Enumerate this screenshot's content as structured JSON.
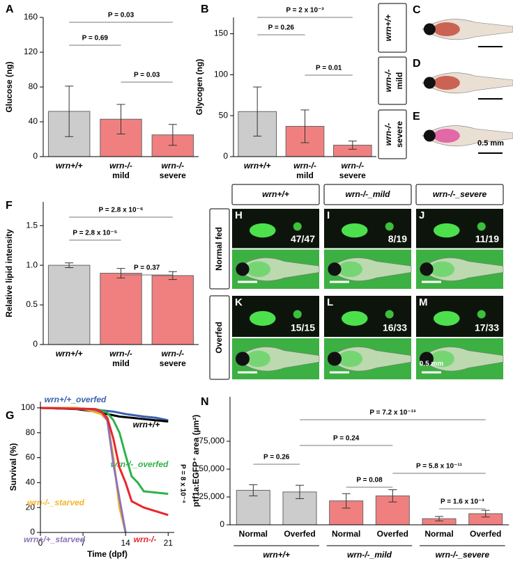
{
  "chart_data": [
    {
      "type": "bar",
      "panel": "A",
      "ylabel": "Glucose (ng)",
      "categories": [
        [
          "wrn+/+"
        ],
        [
          "wrn-/-",
          "mild"
        ],
        [
          "wrn-/-",
          "severe"
        ]
      ],
      "values": [
        52,
        43,
        25
      ],
      "errors": [
        29,
        17,
        12
      ],
      "colors": [
        "#cccccc",
        "#f08080",
        "#f08080"
      ],
      "ylim": [
        0,
        160
      ],
      "yticks": [
        0,
        40,
        80,
        120,
        160
      ],
      "annotations": [
        "P = 0.03",
        "P = 0.69",
        "P = 0.03"
      ]
    },
    {
      "type": "bar",
      "panel": "B",
      "ylabel": "Glycogen (ng)",
      "categories": [
        [
          "wrn+/+"
        ],
        [
          "wrn-/-",
          "mild"
        ],
        [
          "wrn-/-",
          "severe"
        ]
      ],
      "values": [
        55,
        37,
        14
      ],
      "errors": [
        30,
        20,
        5
      ],
      "colors": [
        "#cccccc",
        "#f08080",
        "#f08080"
      ],
      "ylim": [
        0,
        170
      ],
      "yticks": [
        0,
        50,
        100,
        150
      ],
      "annotations": [
        "P = 2 x 10⁻³",
        "P = 0.26",
        "P = 0.01"
      ]
    },
    {
      "type": "bar",
      "panel": "F",
      "ylabel": "Relative lipid intensity",
      "categories": [
        [
          "wrn+/+"
        ],
        [
          "wrn-/-",
          "mild"
        ],
        [
          "wrn-/-",
          "severe"
        ]
      ],
      "values": [
        1.0,
        0.9,
        0.87
      ],
      "errors": [
        0.03,
        0.06,
        0.05
      ],
      "colors": [
        "#cccccc",
        "#f08080",
        "#f08080"
      ],
      "ylim": [
        0,
        1.8
      ],
      "yticks": [
        0,
        0.5,
        {
          "value": 1,
          "label": "1.0"
        },
        1.5
      ],
      "annotations": [
        "P = 2.8 x 10⁻⁶",
        "P = 2.8 x 10⁻⁵",
        "P = 0.37"
      ]
    },
    {
      "type": "line",
      "panel": "G",
      "xlabel": "Time (dpf)",
      "ylabel": "Survival (%)",
      "xlim": [
        0,
        22
      ],
      "xticks": [
        0,
        7,
        14,
        21
      ],
      "ylim": [
        0,
        105
      ],
      "yticks": [
        0,
        20,
        40,
        60,
        80,
        100
      ],
      "annotations": [
        "P = 8 x 10⁻⁴"
      ],
      "series": [
        {
          "name": "wrn+/+_overfed",
          "color": "#3a5fb0",
          "x": [
            0,
            5,
            8,
            10,
            12,
            14,
            17,
            19,
            21
          ],
          "values": [
            100,
            100,
            99,
            98,
            97,
            95,
            93,
            92,
            90
          ]
        },
        {
          "name": "wrn+/+",
          "color": "#000000",
          "x": [
            0,
            6,
            9,
            11,
            13,
            15,
            17,
            19,
            21
          ],
          "values": [
            100,
            99,
            97,
            95,
            93,
            92,
            91,
            90,
            89
          ]
        },
        {
          "name": "wrn-/-_overfed",
          "color": "#2db34a",
          "x": [
            0,
            9,
            10,
            11,
            12,
            13,
            14,
            15,
            16,
            17,
            21
          ],
          "values": [
            100,
            99,
            98,
            96,
            90,
            80,
            62,
            45,
            40,
            33,
            31
          ]
        },
        {
          "name": "wrn-/-_starved",
          "color": "#f5b324",
          "x": [
            0,
            6,
            8,
            10,
            11,
            12,
            13,
            14
          ],
          "values": [
            100,
            100,
            98,
            95,
            90,
            60,
            20,
            0
          ]
        },
        {
          "name": "wrn+/+_starved",
          "color": "#8b74b8",
          "x": [
            0,
            8,
            10,
            11,
            12,
            13,
            14
          ],
          "values": [
            100,
            99,
            97,
            90,
            55,
            27,
            0
          ]
        },
        {
          "name": "wrn-/-",
          "color": "#e8262b",
          "x": [
            0,
            9,
            10,
            11,
            12,
            13,
            14,
            15,
            17,
            19,
            21
          ],
          "values": [
            100,
            99,
            97,
            92,
            75,
            52,
            40,
            25,
            20,
            17,
            14
          ]
        }
      ]
    },
    {
      "type": "bar",
      "panel": "N",
      "ylabel": "ptf1a:EGFP⁺ area (µm²)",
      "categories": [
        [
          "Normal"
        ],
        [
          "Overfed"
        ],
        [
          "Normal"
        ],
        [
          "Overfed"
        ],
        [
          "Normal"
        ],
        [
          "Overfed"
        ]
      ],
      "groups": [
        "wrn+/+",
        "wrn-/-_mild",
        "wrn-/-_severe"
      ],
      "values": [
        31000,
        29500,
        21500,
        26000,
        5500,
        10000
      ],
      "errors": [
        5000,
        6000,
        6500,
        5500,
        2000,
        3000
      ],
      "colors": [
        "#cccccc",
        "#cccccc",
        "#f08080",
        "#f08080",
        "#f08080",
        "#f08080"
      ],
      "ylim": [
        0,
        115000
      ],
      "yticks": [
        0,
        {
          "value": 25000,
          "label": "25,000"
        },
        {
          "value": 50000,
          "label": "50,000"
        },
        {
          "value": 75000,
          "label": "75,000"
        }
      ],
      "annotations": [
        "P = 7.2 x 10⁻¹³",
        "P = 0.24",
        "P = 0.26",
        "P = 5.8 x 10⁻¹¹",
        "P = 0.08",
        "P = 1.6 x 10⁻³"
      ]
    }
  ],
  "fish_panels": [
    {
      "panel": "C",
      "label": [
        "wrn+/+"
      ]
    },
    {
      "panel": "D",
      "label": [
        "wrn-/-",
        "mild"
      ]
    },
    {
      "panel": "E",
      "label": [
        "wrn-/-",
        "severe"
      ],
      "scale": "0.5 mm"
    }
  ],
  "fluorescence_grid": {
    "columns": [
      "wrn+/+",
      "wrn-/-_mild",
      "wrn-/-_severe"
    ],
    "rows": [
      {
        "label": "Normal fed",
        "cells": [
          {
            "panel": "H",
            "count": "47/47"
          },
          {
            "panel": "I",
            "count": "8/19"
          },
          {
            "panel": "J",
            "count": "11/19"
          }
        ]
      },
      {
        "label": "Overfed",
        "cells": [
          {
            "panel": "K",
            "count": "15/15"
          },
          {
            "panel": "L",
            "count": "16/33"
          },
          {
            "panel": "M",
            "count": "17/33"
          }
        ]
      }
    ],
    "scale": "0.5 mm"
  }
}
